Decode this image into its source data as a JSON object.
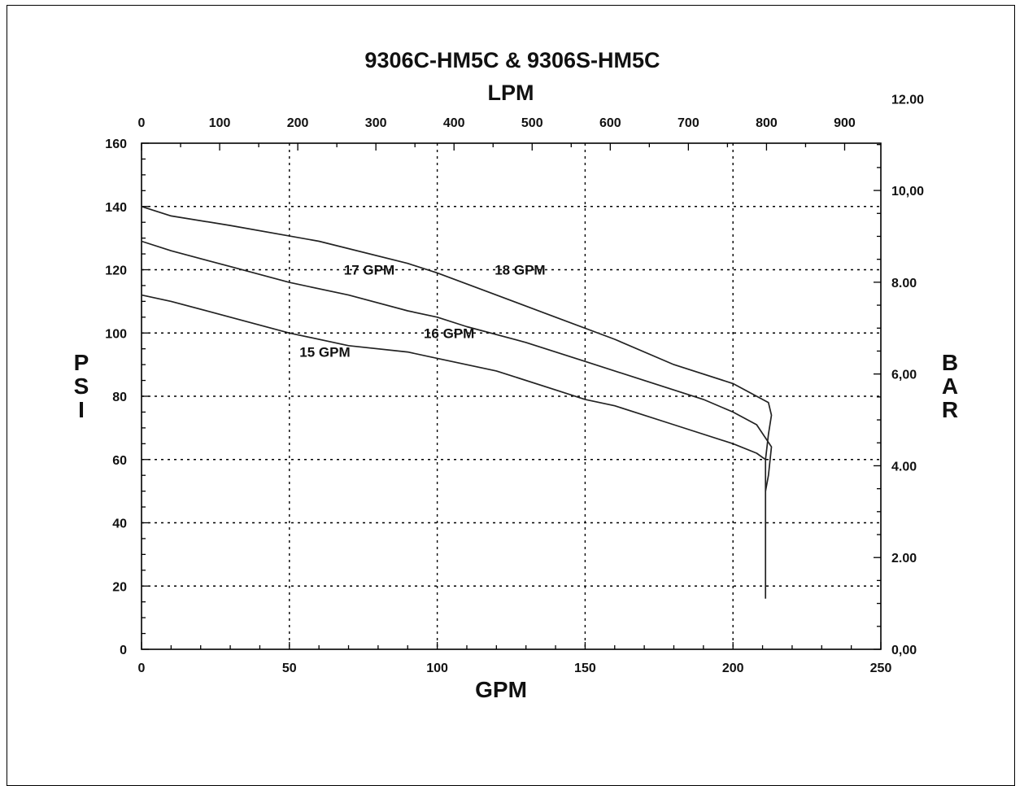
{
  "chart_data": {
    "type": "line",
    "title": "9306C-HM5C & 9306S-HM5C",
    "xlabel": "GPM",
    "x2label": "LPM",
    "ylabel": "PSI",
    "y2label": "BAR",
    "xlim": [
      0,
      250
    ],
    "ylim": [
      0,
      160
    ],
    "x2lim": [
      0,
      946.35
    ],
    "y2lim": [
      0,
      11.03
    ],
    "xticks": [
      0,
      50,
      100,
      150,
      200,
      250
    ],
    "yticks": [
      0,
      20,
      40,
      60,
      80,
      100,
      120,
      140,
      160
    ],
    "x2ticks": [
      0,
      100,
      200,
      300,
      400,
      500,
      600,
      700,
      800,
      900
    ],
    "x2ticklabels": [
      "0",
      "100",
      "200",
      "300",
      "400",
      "500",
      "600",
      "700",
      "800",
      "900"
    ],
    "y2ticks": [
      0,
      2,
      4,
      6,
      8,
      10,
      12
    ],
    "y2ticklabels": [
      "0,00",
      "2.00",
      "4.00",
      "6,00",
      "8.00",
      "10,00",
      "12.00"
    ],
    "grid": true,
    "series": [
      {
        "name": "15 GPM",
        "x": [
          0,
          10,
          30,
          50,
          70,
          90,
          100,
          120,
          140,
          150,
          160,
          180,
          200,
          208,
          211,
          211,
          211
        ],
        "y": [
          112,
          110,
          105,
          100,
          96,
          94,
          92,
          88,
          82,
          79,
          77,
          71,
          65,
          62,
          60,
          40,
          16
        ]
      },
      {
        "name": "16 GPM",
        "x": [
          0,
          10,
          30,
          50,
          70,
          90,
          100,
          110,
          130,
          150,
          170,
          190,
          200,
          208,
          213,
          212,
          211
        ],
        "y": [
          129,
          126,
          121,
          116,
          112,
          107,
          105,
          102,
          97,
          91,
          85,
          79,
          75,
          71,
          64,
          55,
          50
        ]
      },
      {
        "name": "17 GPM",
        "x": [
          0,
          10,
          30,
          60,
          90,
          100,
          120,
          140,
          160,
          180,
          200,
          208,
          212,
          213,
          212,
          211
        ],
        "y": [
          140,
          137,
          134,
          129,
          122,
          119,
          112,
          105,
          98,
          90,
          84,
          80,
          78,
          74,
          68,
          60
        ]
      }
    ],
    "annotations": [
      {
        "text": "17 GPM",
        "x": 77,
        "y": 120
      },
      {
        "text": "18 GPM",
        "x": 128,
        "y": 120
      },
      {
        "text": "16 GPM",
        "x": 104,
        "y": 100
      },
      {
        "text": "15 GPM",
        "x": 62,
        "y": 94
      }
    ]
  }
}
